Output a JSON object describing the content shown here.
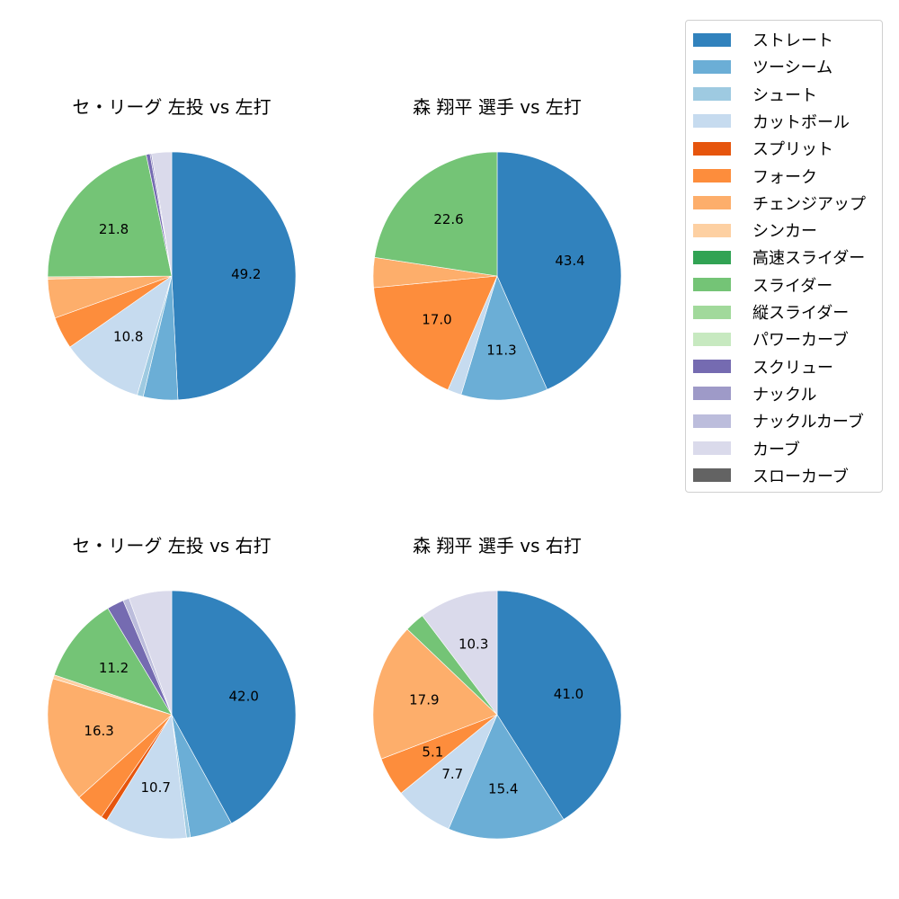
{
  "chart_data": [
    {
      "type": "pie",
      "title": "セ・リーグ 左投 vs 左打",
      "categories": [
        "ストレート",
        "ツーシーム",
        "シュート",
        "カットボール",
        "フォーク",
        "チェンジアップ",
        "シンカー",
        "スライダー",
        "スクリュー",
        "ナックル",
        "カーブ"
      ],
      "values": [
        49.2,
        4.5,
        0.8,
        10.8,
        4.2,
        5.1,
        0.3,
        21.8,
        0.5,
        0.2,
        2.6
      ],
      "labels_shown": [
        "49.2",
        "",
        "",
        "10.8",
        "",
        "",
        "",
        "21.8",
        "",
        "",
        ""
      ],
      "start_angle": 90,
      "direction": "clockwise"
    },
    {
      "type": "pie",
      "title": "森 翔平 選手 vs 左打",
      "categories": [
        "ストレート",
        "ツーシーム",
        "カットボール",
        "フォーク",
        "チェンジアップ",
        "スライダー"
      ],
      "values": [
        43.4,
        11.3,
        1.8,
        17.0,
        3.9,
        22.6
      ],
      "labels_shown": [
        "43.4",
        "11.3",
        "",
        "17.0",
        "",
        "22.6"
      ],
      "start_angle": 90,
      "direction": "clockwise"
    },
    {
      "type": "pie",
      "title": "セ・リーグ 左投 vs 右打",
      "categories": [
        "ストレート",
        "ツーシーム",
        "シュート",
        "カットボール",
        "スプリット",
        "フォーク",
        "チェンジアップ",
        "シンカー",
        "スライダー",
        "スクリュー",
        "ナックルカーブ",
        "カーブ"
      ],
      "values": [
        42.0,
        5.6,
        0.5,
        10.7,
        0.8,
        3.8,
        16.3,
        0.5,
        11.2,
        2.2,
        0.8,
        5.6
      ],
      "labels_shown": [
        "42.0",
        "",
        "",
        "10.7",
        "",
        "",
        "16.3",
        "",
        "11.2",
        "",
        "",
        ""
      ],
      "start_angle": 90,
      "direction": "clockwise"
    },
    {
      "type": "pie",
      "title": "森 翔平 選手 vs 右打",
      "categories": [
        "ストレート",
        "ツーシーム",
        "カットボール",
        "フォーク",
        "チェンジアップ",
        "スライダー",
        "カーブ"
      ],
      "values": [
        41.0,
        15.4,
        7.7,
        5.1,
        17.9,
        2.6,
        10.3
      ],
      "labels_shown": [
        "41.0",
        "15.4",
        "7.7",
        "5.1",
        "17.9",
        "",
        "10.3"
      ],
      "start_angle": 90,
      "direction": "clockwise"
    }
  ],
  "legend": {
    "position": "upper right",
    "items": [
      {
        "label": "ストレート",
        "color": "#3182bd"
      },
      {
        "label": "ツーシーム",
        "color": "#6baed6"
      },
      {
        "label": "シュート",
        "color": "#9ecae1"
      },
      {
        "label": "カットボール",
        "color": "#c6dbef"
      },
      {
        "label": "スプリット",
        "color": "#e6550d"
      },
      {
        "label": "フォーク",
        "color": "#fd8d3c"
      },
      {
        "label": "チェンジアップ",
        "color": "#fdae6b"
      },
      {
        "label": "シンカー",
        "color": "#fdd0a2"
      },
      {
        "label": "高速スライダー",
        "color": "#31a354"
      },
      {
        "label": "スライダー",
        "color": "#74c476"
      },
      {
        "label": "縦スライダー",
        "color": "#a1d99b"
      },
      {
        "label": "パワーカーブ",
        "color": "#c7e9c0"
      },
      {
        "label": "スクリュー",
        "color": "#756bb1"
      },
      {
        "label": "ナックル",
        "color": "#9e9ac8"
      },
      {
        "label": "ナックルカーブ",
        "color": "#bcbddc"
      },
      {
        "label": "カーブ",
        "color": "#dadaeb"
      },
      {
        "label": "スローカーブ",
        "color": "#636363"
      }
    ]
  }
}
